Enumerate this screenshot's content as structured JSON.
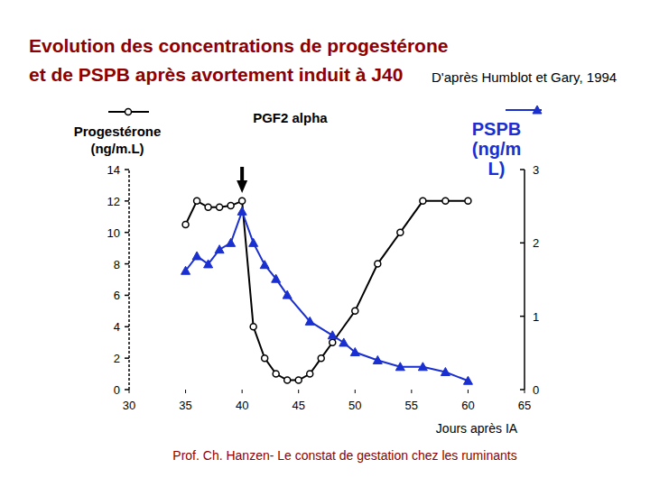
{
  "chart_data": {
    "type": "line",
    "title": "Evolution des concentrations de progestérone",
    "subtitle": "et de PSPB après avortement induit à J40",
    "source": "D'après Humblot et Gary, 1994",
    "footer": "Prof. Ch. Hanzen- Le constat de gestation chez les ruminants",
    "x_label": "Jours après IA",
    "xlim": [
      30,
      65
    ],
    "xticks": [
      30,
      35,
      40,
      45,
      50,
      55,
      60,
      65
    ],
    "ylim": [
      0,
      14
    ],
    "yticks": [
      0,
      2,
      4,
      6,
      8,
      10,
      12,
      14
    ],
    "y2lim": [
      0,
      3
    ],
    "y2ticks": [
      0,
      1,
      2,
      3
    ],
    "annotations": [
      {
        "text": "PGF2 alpha",
        "x": 40
      }
    ],
    "series": [
      {
        "name": "Progestérone (ng/m.L)",
        "color": "#000000",
        "marker": "circle",
        "x": [
          35,
          36,
          37,
          38,
          39,
          40,
          41,
          42,
          43,
          44,
          45,
          46,
          47,
          48,
          50,
          52,
          54,
          56,
          58,
          60
        ],
        "values": [
          10.5,
          12,
          11.6,
          11.6,
          11.7,
          12,
          4,
          2,
          1,
          0.6,
          0.6,
          1,
          2,
          3,
          5,
          8,
          10,
          12,
          12,
          12
        ]
      },
      {
        "name": "PSPB (ng/mL)",
        "color": "#1a2fd0",
        "marker": "triangle",
        "axis": "y2",
        "x": [
          35,
          36,
          37,
          38,
          39,
          40,
          41,
          42,
          43,
          44,
          46,
          48,
          49,
          50,
          52,
          54,
          56,
          58,
          60
        ],
        "values": [
          1.62,
          1.82,
          1.71,
          1.91,
          2.0,
          2.43,
          2.0,
          1.7,
          1.51,
          1.29,
          0.93,
          0.74,
          0.64,
          0.51,
          0.4,
          0.31,
          0.31,
          0.24,
          0.12
        ]
      }
    ]
  }
}
